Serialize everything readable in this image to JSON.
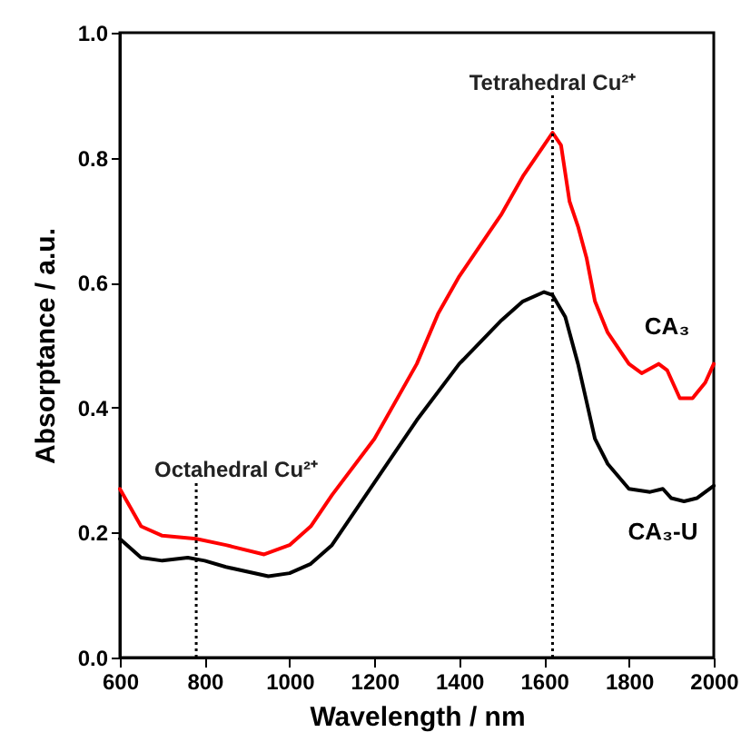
{
  "chart_data": {
    "type": "line",
    "xlabel": "Wavelength / nm",
    "ylabel": "Absorptance / a.u.",
    "xlim": [
      600,
      2000
    ],
    "ylim": [
      0,
      1
    ],
    "xticks": [
      600,
      800,
      1000,
      1200,
      1400,
      1600,
      1800,
      2000
    ],
    "yticks": [
      {
        "value": 0,
        "label": "0.0"
      },
      0.2,
      0.4,
      0.6,
      0.8,
      {
        "value": 1,
        "label": "1.0"
      }
    ],
    "grid": false,
    "marker": "none",
    "line_style": "solid",
    "annotations": [
      {
        "text": "Tetrahedral Cu²⁺",
        "x": 1620,
        "y": 0.9
      },
      {
        "text": "Octahedral Cu²⁺",
        "x": 780,
        "y": 0.28
      }
    ],
    "ref_lines": [
      {
        "axis": "x",
        "value": 1620,
        "line_style": "dotted",
        "color": "#000000"
      },
      {
        "axis": "x",
        "value": 780,
        "line_style": "dotted",
        "color": "#000000"
      }
    ],
    "series": [
      {
        "name": "CA₃",
        "color": "#ff0000",
        "x": [
          600,
          650,
          700,
          780,
          850,
          940,
          1000,
          1050,
          1100,
          1200,
          1300,
          1350,
          1400,
          1500,
          1550,
          1600,
          1620,
          1640,
          1660,
          1680,
          1700,
          1720,
          1750,
          1800,
          1830,
          1870,
          1890,
          1920,
          1950,
          1980,
          2000
        ],
        "values": [
          0.27,
          0.21,
          0.195,
          0.19,
          0.18,
          0.165,
          0.18,
          0.21,
          0.26,
          0.35,
          0.47,
          0.55,
          0.61,
          0.71,
          0.77,
          0.82,
          0.84,
          0.82,
          0.73,
          0.69,
          0.64,
          0.57,
          0.52,
          0.47,
          0.455,
          0.47,
          0.46,
          0.415,
          0.415,
          0.44,
          0.47
        ]
      },
      {
        "name": "CA₃-U",
        "color": "#000000",
        "x": [
          600,
          650,
          700,
          760,
          800,
          850,
          950,
          1000,
          1050,
          1100,
          1200,
          1300,
          1400,
          1500,
          1550,
          1600,
          1620,
          1650,
          1680,
          1700,
          1720,
          1750,
          1800,
          1850,
          1880,
          1900,
          1930,
          1960,
          2000
        ],
        "values": [
          0.19,
          0.16,
          0.155,
          0.16,
          0.155,
          0.145,
          0.13,
          0.135,
          0.15,
          0.18,
          0.28,
          0.38,
          0.47,
          0.54,
          0.57,
          0.585,
          0.58,
          0.545,
          0.47,
          0.41,
          0.35,
          0.31,
          0.27,
          0.265,
          0.27,
          0.255,
          0.25,
          0.255,
          0.275
        ]
      }
    ]
  }
}
